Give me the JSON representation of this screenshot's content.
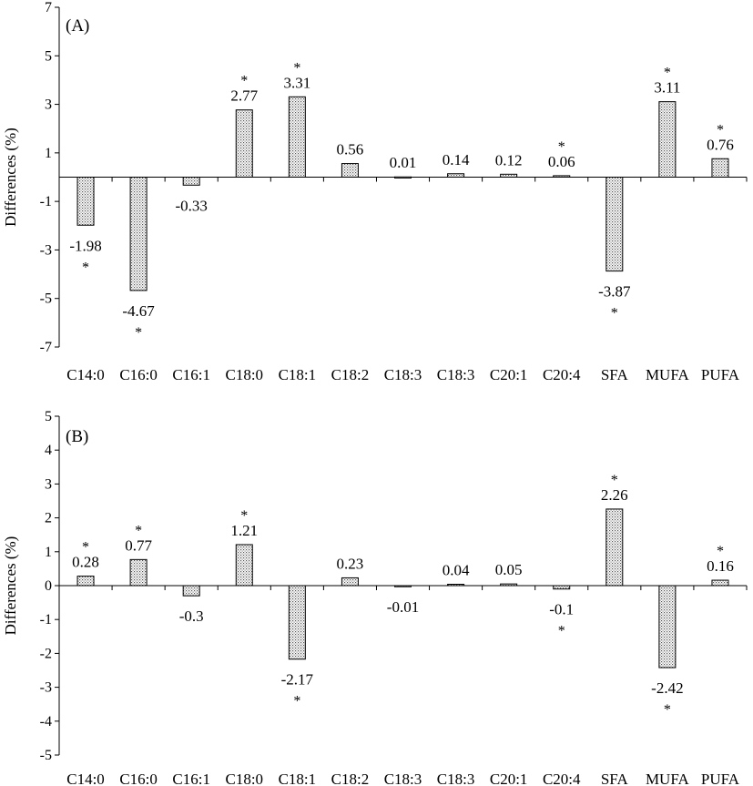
{
  "chart_data": [
    {
      "type": "bar",
      "panel_label": "(A)",
      "ylabel": "Differences (%)",
      "ylim": [
        -7,
        7
      ],
      "yticks": [
        -7,
        -5,
        -3,
        -1,
        1,
        3,
        5,
        7
      ],
      "categories": [
        "C14:0",
        "C16:0",
        "C16:1",
        "C18:0",
        "C18:1",
        "C18:2",
        "C18:3",
        "C18:3",
        "C20:1",
        "C20:4",
        "SFA",
        "MUFA",
        "PUFA"
      ],
      "values": [
        -1.98,
        -4.67,
        -0.33,
        2.77,
        3.31,
        0.56,
        0.01,
        0.14,
        0.12,
        0.06,
        -3.87,
        3.11,
        0.76
      ],
      "value_labels": [
        "-1.98",
        "-4.67",
        "-0.33",
        "2.77",
        "3.31",
        "0.56",
        "0.01",
        "0.14",
        "0.12",
        "0.06",
        "-3.87",
        "3.11",
        "0.76"
      ],
      "significant": [
        true,
        true,
        false,
        true,
        true,
        false,
        false,
        false,
        false,
        true,
        true,
        true,
        true
      ],
      "significance_marker": "*",
      "fill_pattern": "dotted"
    },
    {
      "type": "bar",
      "panel_label": "(B)",
      "ylabel": "Differences (%)",
      "ylim": [
        -5,
        5
      ],
      "yticks": [
        -5,
        -4,
        -3,
        -2,
        -1,
        0,
        1,
        2,
        3,
        4,
        5
      ],
      "categories": [
        "C14:0",
        "C16:0",
        "C16:1",
        "C18:0",
        "C18:1",
        "C18:2",
        "C18:3",
        "C18:3",
        "C20:1",
        "C20:4",
        "SFA",
        "MUFA",
        "PUFA"
      ],
      "values": [
        0.28,
        0.77,
        -0.3,
        1.21,
        -2.17,
        0.23,
        -0.01,
        0.04,
        0.05,
        -0.1,
        2.26,
        -2.42,
        0.16
      ],
      "value_labels": [
        "0.28",
        "0.77",
        "-0.3",
        "1.21",
        "-2.17",
        "0.23",
        "-0.01",
        "0.04",
        "0.05",
        "-0.1",
        "2.26",
        "-2.42",
        "0.16"
      ],
      "significant": [
        true,
        true,
        false,
        true,
        true,
        false,
        false,
        false,
        false,
        true,
        true,
        true,
        true
      ],
      "significance_marker": "*",
      "fill_pattern": "dotted"
    }
  ]
}
